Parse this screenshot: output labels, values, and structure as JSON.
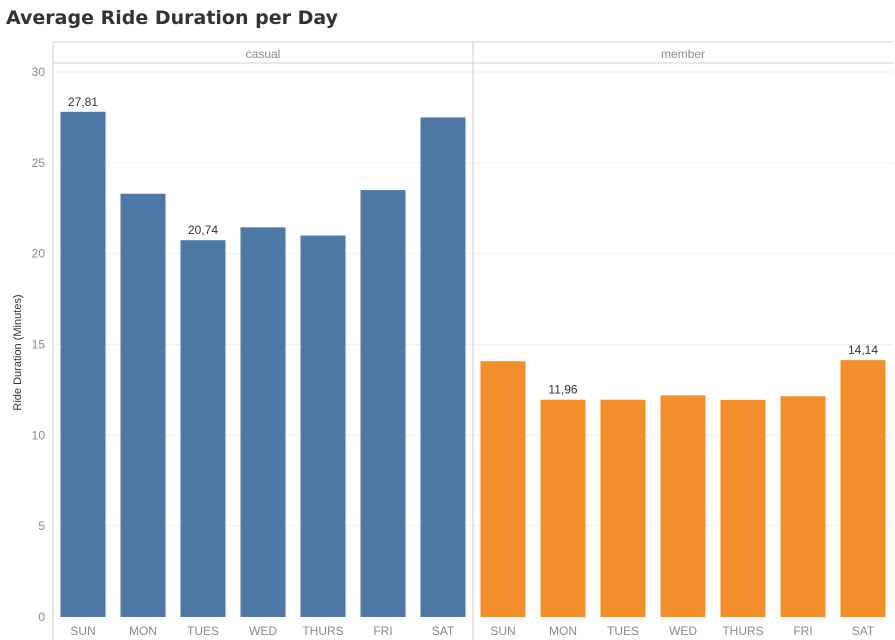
{
  "chart_data": {
    "type": "bar",
    "title": "Average Ride Duration per Day",
    "ylabel": "Ride Duration (Minutes)",
    "xlabel": "",
    "ylim": [
      0,
      30
    ],
    "yticks": [
      0,
      5,
      10,
      15,
      20,
      25,
      30
    ],
    "grid": true,
    "categories": [
      "SUN",
      "MON",
      "TUES",
      "WED",
      "THURS",
      "FRI",
      "SAT"
    ],
    "series": [
      {
        "name": "casual",
        "color": "#4e79a7",
        "values": [
          27.81,
          23.3,
          20.74,
          21.45,
          21.0,
          23.5,
          27.5
        ],
        "labels": [
          "27,81",
          "",
          "20,74",
          "",
          "",
          "",
          ""
        ]
      },
      {
        "name": "member",
        "color": "#f28e2b",
        "values": [
          14.08,
          11.96,
          11.96,
          12.2,
          11.95,
          12.15,
          14.14
        ],
        "labels": [
          "",
          "11,96",
          "",
          "",
          "",
          "",
          "14,14"
        ]
      }
    ]
  }
}
